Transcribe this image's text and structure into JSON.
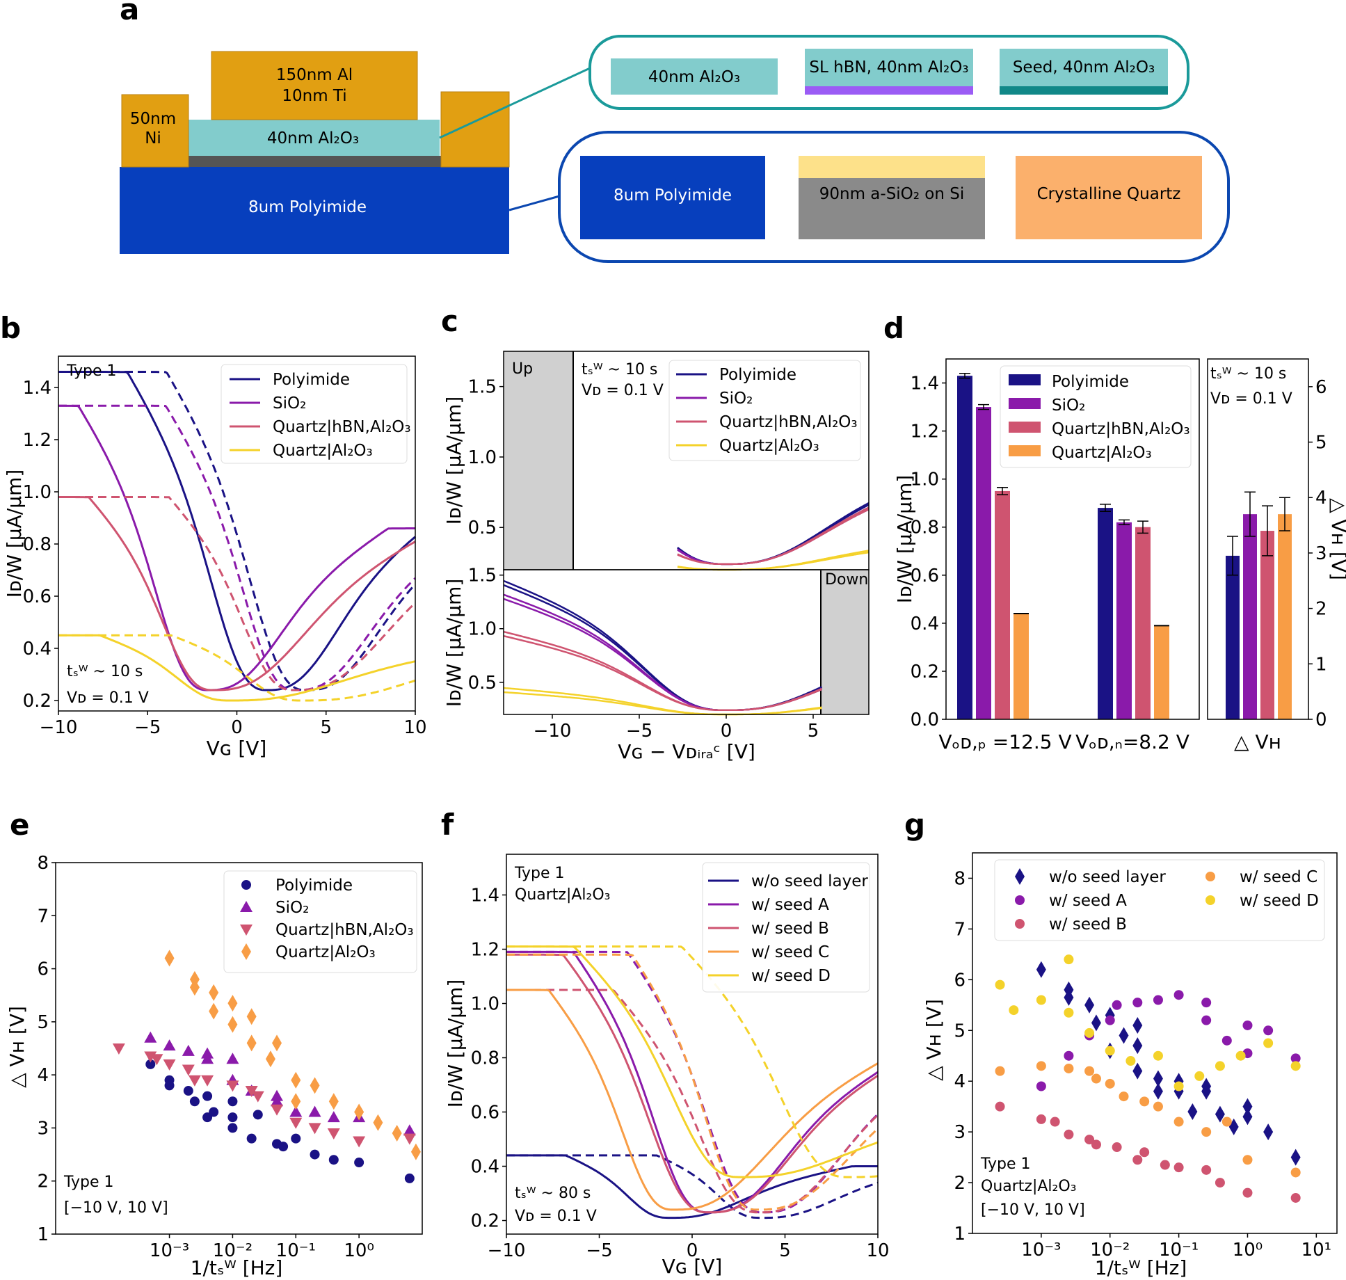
{
  "colors": {
    "polyimide": "#1a1285",
    "sio2": "#8a1aaa",
    "quartz_hbn": "#cf5470",
    "quartz_al2o3": "#f4d22a",
    "orange": "#f89d45",
    "gold": "#e19f12",
    "teal": "#82cccc",
    "blue": "#073fbd",
    "grey": "#8a8a8a"
  },
  "panel_a": {
    "label": "a",
    "al_top": "150nm Al",
    "ti": "10nm Ti",
    "ni_l1": "50nm",
    "ni_l2": "Ni",
    "oxide": "40nm Al₂O₃",
    "substrate": "8um Polyimide",
    "var_plain": "40nm Al₂O₃",
    "var_hbn": "SL hBN, 40nm Al₂O₃",
    "var_seed": "Seed, 40nm Al₂O₃",
    "sub_polyimide": "8um Polyimide",
    "sub_sio2": "90nm a-SiO₂ on Si",
    "sub_quartz": "Crystalline Quartz"
  },
  "panel_b": {
    "label": "b",
    "chart_data": {
      "type": "line",
      "xlabel": "Vɢ [V]",
      "ylabel": "Iᴅ/W [μA/μm]",
      "xlim": [
        -10,
        10
      ],
      "ylim": [
        0.16,
        1.52
      ],
      "xticks": [
        "−10",
        "−5",
        "0",
        "5",
        "10"
      ],
      "yticks": [
        "0.2",
        "0.4",
        "0.6",
        "0.8",
        "1.0",
        "1.2",
        "1.4"
      ],
      "series": [
        {
          "name": "Polyimide",
          "key": "polyimide",
          "min_x": 1.7,
          "min_y": 0.24,
          "left": 1.46,
          "right": 0.91,
          "wl": 2.8,
          "wr": 3.5,
          "dash_min_x": 3.9,
          "dash_left": 1.46,
          "dash_right": 0.86
        },
        {
          "name": "SiO₂",
          "key": "sio2",
          "min_x": -1.6,
          "min_y": 0.24,
          "left": 1.33,
          "right": 0.86,
          "wl": 2.6,
          "wr": 3.6,
          "dash_min_x": 3.3,
          "dash_left": 1.33,
          "dash_right": 0.85
        },
        {
          "name": "Quartz|hBN,Al₂O₃",
          "key": "quartz_hbn",
          "min_x": -1.3,
          "min_y": 0.24,
          "left": 0.98,
          "right": 0.86,
          "wl": 2.5,
          "wr": 4.5,
          "dash_min_x": 3.2,
          "dash_left": 0.98,
          "dash_right": 0.85
        },
        {
          "name": "Quartz|Al₂O₃",
          "key": "quartz_al2o3",
          "min_x": -0.4,
          "min_y": 0.2,
          "left": 0.45,
          "right": 0.41,
          "wl": 2.6,
          "wr": 5.5,
          "dash_min_x": 3.6,
          "dash_left": 0.45,
          "dash_right": 0.41
        }
      ]
    },
    "type": "Type 1",
    "tsw": "tₛᵂ ~ 10 s",
    "vd": "Vᴅ = 0.1 V"
  },
  "panel_c": {
    "label": "c",
    "up": "Up",
    "down": "Down",
    "tsw": "tₛᵂ ~ 10 s",
    "vd": "Vᴅ = 0.1 V",
    "xlabel": "Vɢ − Vᴅᵢᵣₐᶜ [V]",
    "ylabel": "Iᴅ/W [μA/μm]",
    "xticks": [
      "−10",
      "−5",
      "0",
      "5"
    ],
    "yticks_top": [
      "0.5",
      "1.0",
      "1.5"
    ],
    "yticks_bot": [
      "0.5",
      "1.0",
      "1.5"
    ],
    "legend": [
      "Polyimide",
      "SiO₂",
      "Quartz|hBN,Al₂O₃",
      "Quartz|Al₂O₃"
    ]
  },
  "panel_d": {
    "label": "d",
    "chart_data": {
      "type": "bar",
      "categories": [
        "Vₒᴅ,ₚ =12.5 V",
        "Vₒᴅ,ₙ=8.2 V"
      ],
      "ylim": [
        0,
        1.5
      ],
      "ylabel": "Iᴅ/W [μA/μm]",
      "yticks": [
        "0.0",
        "0.2",
        "0.4",
        "0.6",
        "0.8",
        "1.0",
        "1.2",
        "1.4"
      ],
      "series": [
        {
          "name": "Polyimide",
          "key": "polyimide",
          "values": [
            1.43,
            0.88
          ],
          "err": [
            0.01,
            0.015
          ]
        },
        {
          "name": "SiO₂",
          "key": "sio2",
          "values": [
            1.3,
            0.82
          ],
          "err": [
            0.01,
            0.01
          ]
        },
        {
          "name": "Quartz|hBN,Al₂O₃",
          "key": "quartz_hbn",
          "values": [
            0.95,
            0.8
          ],
          "err": [
            0.015,
            0.025
          ]
        },
        {
          "name": "Quartz|Al₂O₃",
          "key": "orange",
          "values": [
            0.44,
            0.39
          ],
          "err": [
            0,
            0
          ]
        }
      ],
      "dvh": {
        "category": "△ Vʜ",
        "ylim": [
          0,
          6.5
        ],
        "yticks": [
          "0",
          "1",
          "2",
          "3",
          "4",
          "5",
          "6"
        ],
        "ylabel": "△ Vʜ [V]",
        "values": [
          2.95,
          3.7,
          3.4,
          3.7
        ],
        "err": [
          0.35,
          0.4,
          0.45,
          0.3
        ]
      }
    },
    "tsw": "tₛᵂ ~ 10 s",
    "vd": "Vᴅ = 0.1 V"
  },
  "panel_e": {
    "label": "e",
    "chart_data": {
      "type": "scatter",
      "xlabel": "1/tₛᵂ [Hz]",
      "ylabel": "△ Vʜ [V]",
      "xlim_log": [
        -4.8,
        1.0
      ],
      "ylim": [
        1,
        8
      ],
      "yticks": [
        "1",
        "2",
        "3",
        "4",
        "5",
        "6",
        "7",
        "8"
      ],
      "xticks": [
        "10⁻³",
        "10⁻²",
        "10⁻¹",
        "10⁰"
      ],
      "series": [
        {
          "name": "Polyimide",
          "key": "polyimide",
          "marker": "circle",
          "points": [
            [
              -3.3,
              4.2
            ],
            [
              -3.0,
              3.9
            ],
            [
              -3.0,
              3.8
            ],
            [
              -2.7,
              3.7
            ],
            [
              -2.6,
              3.5
            ],
            [
              -2.4,
              3.6
            ],
            [
              -2.4,
              3.2
            ],
            [
              -2.3,
              3.3
            ],
            [
              -2.0,
              3.5
            ],
            [
              -2.0,
              3.2
            ],
            [
              -2.0,
              3.0
            ],
            [
              -1.7,
              2.8
            ],
            [
              -1.6,
              3.25
            ],
            [
              -1.3,
              2.7
            ],
            [
              -1.2,
              2.65
            ],
            [
              -1.0,
              2.8
            ],
            [
              -0.7,
              2.5
            ],
            [
              -0.4,
              2.4
            ],
            [
              0.0,
              2.35
            ],
            [
              0.8,
              2.05
            ]
          ]
        },
        {
          "name": "SiO₂",
          "key": "sio2",
          "marker": "tri-up",
          "points": [
            [
              -3.3,
              4.7
            ],
            [
              -3.0,
              4.55
            ],
            [
              -2.7,
              4.45
            ],
            [
              -2.4,
              4.4
            ],
            [
              -2.4,
              4.3
            ],
            [
              -2.0,
              4.3
            ],
            [
              -2.0,
              3.9
            ],
            [
              -1.7,
              3.7
            ],
            [
              -1.3,
              3.6
            ],
            [
              -1.3,
              3.5
            ],
            [
              -1.0,
              3.3
            ],
            [
              -0.7,
              3.3
            ],
            [
              -0.4,
              3.2
            ],
            [
              0.0,
              3.2
            ],
            [
              0.8,
              2.95
            ]
          ]
        },
        {
          "name": "Quartz|hBN,Al₂O₃",
          "key": "quartz_hbn",
          "marker": "tri-down",
          "points": [
            [
              -3.8,
              4.5
            ],
            [
              -3.3,
              4.35
            ],
            [
              -3.2,
              4.3
            ],
            [
              -3.0,
              4.2
            ],
            [
              -2.7,
              4.1
            ],
            [
              -2.6,
              3.9
            ],
            [
              -2.4,
              3.9
            ],
            [
              -2.0,
              3.8
            ],
            [
              -1.7,
              3.7
            ],
            [
              -1.6,
              3.6
            ],
            [
              -1.3,
              3.35
            ],
            [
              -1.0,
              3.1
            ],
            [
              -0.7,
              3.0
            ],
            [
              -0.4,
              2.9
            ],
            [
              0.0,
              2.75
            ],
            [
              0.8,
              2.8
            ]
          ]
        },
        {
          "name": "Quartz|Al₂O₃",
          "key": "orange",
          "marker": "diamond",
          "points": [
            [
              -3.0,
              6.2
            ],
            [
              -2.6,
              5.8
            ],
            [
              -2.6,
              5.65
            ],
            [
              -2.3,
              5.55
            ],
            [
              -2.3,
              5.2
            ],
            [
              -2.0,
              5.35
            ],
            [
              -2.0,
              4.95
            ],
            [
              -1.7,
              5.1
            ],
            [
              -1.7,
              4.6
            ],
            [
              -1.4,
              4.3
            ],
            [
              -1.3,
              4.6
            ],
            [
              -1.0,
              3.9
            ],
            [
              -1.0,
              3.5
            ],
            [
              -0.7,
              3.8
            ],
            [
              -0.4,
              3.5
            ],
            [
              0.0,
              3.3
            ],
            [
              0.3,
              3.1
            ],
            [
              0.6,
              2.9
            ],
            [
              0.9,
              2.55
            ]
          ]
        }
      ]
    },
    "type": "Type 1",
    "range": "[−10 V, 10 V]"
  },
  "panel_f": {
    "label": "f",
    "chart_data": {
      "type": "line",
      "xlabel": "Vɢ [V]",
      "ylabel": "Iᴅ/W [μA/μm]",
      "xlim": [
        -10,
        10
      ],
      "ylim": [
        0.15,
        1.55
      ],
      "xticks": [
        "−10",
        "−5",
        "0",
        "5",
        "10"
      ],
      "yticks": [
        "0.2",
        "0.4",
        "0.6",
        "0.8",
        "1.0",
        "1.2",
        "1.4"
      ],
      "series": [
        {
          "name": "w/o seed layer",
          "key": "polyimide",
          "min_x": -1.2,
          "min_y": 0.21,
          "left": 0.44,
          "right": 0.4,
          "wl": 2.0,
          "wr": 3.5,
          "dash_min_x": 3.7,
          "dash_left": 0.44,
          "dash_right": 0.4
        },
        {
          "name": "w/ seed A",
          "key": "sio2",
          "min_x": 0.9,
          "min_y": 0.23,
          "left": 1.19,
          "right": 0.79,
          "wl": 2.6,
          "wr": 3.6,
          "dash_min_x": 3.8,
          "dash_left": 1.19,
          "dash_right": 0.79
        },
        {
          "name": "w/ seed B",
          "key": "quartz_hbn",
          "min_x": 0.9,
          "min_y": 0.23,
          "left": 1.18,
          "right": 0.8,
          "wl": 2.8,
          "wr": 3.8,
          "dash_min_x": 3.6,
          "dash_left": 1.05,
          "dash_right": 0.8
        },
        {
          "name": "w/ seed C",
          "key": "orange",
          "min_x": -1.0,
          "min_y": 0.24,
          "left": 1.05,
          "right": 0.84,
          "wl": 2.4,
          "wr": 4.5,
          "dash_min_x": 3.5,
          "dash_left": 1.18,
          "dash_right": 0.82
        },
        {
          "name": "w/ seed D",
          "key": "quartz_al2o3",
          "min_x": 2.6,
          "min_y": 0.36,
          "left": 1.21,
          "right": 0.6,
          "wl": 3.2,
          "wr": 5.0,
          "dash_min_x": 8.4,
          "dash_left": 1.21,
          "dash_right": 0.55
        }
      ]
    },
    "type": "Type 1",
    "material": "Quartz|Al₂O₃",
    "tsw": "tₛᵂ ~ 80 s",
    "vd": "Vᴅ = 0.1 V"
  },
  "panel_g": {
    "label": "g",
    "chart_data": {
      "type": "scatter",
      "xlabel": "1/tₛᵂ [Hz]",
      "ylabel": "△ Vʜ [V]",
      "xlim_log": [
        -4.0,
        1.3
      ],
      "ylim": [
        1,
        8.5
      ],
      "yticks": [
        "1",
        "2",
        "3",
        "4",
        "5",
        "6",
        "7",
        "8"
      ],
      "xticks": [
        "10⁻³",
        "10⁻²",
        "10⁻¹",
        "10⁰",
        "10¹"
      ],
      "series": [
        {
          "name": "w/o seed layer",
          "key": "polyimide",
          "marker": "diamond",
          "points": [
            [
              -3.0,
              6.2
            ],
            [
              -2.6,
              5.8
            ],
            [
              -2.6,
              5.65
            ],
            [
              -2.3,
              5.5
            ],
            [
              -2.2,
              5.15
            ],
            [
              -2.0,
              5.3
            ],
            [
              -2.0,
              4.6
            ],
            [
              -1.8,
              4.9
            ],
            [
              -1.6,
              5.1
            ],
            [
              -1.6,
              4.7
            ],
            [
              -1.6,
              4.2
            ],
            [
              -1.3,
              4.05
            ],
            [
              -1.3,
              3.8
            ],
            [
              -1.0,
              3.8
            ],
            [
              -1.0,
              4.0
            ],
            [
              -0.8,
              3.4
            ],
            [
              -0.6,
              3.9
            ],
            [
              -0.6,
              3.8
            ],
            [
              -0.4,
              3.35
            ],
            [
              -0.2,
              3.1
            ],
            [
              0.0,
              3.5
            ],
            [
              0.0,
              3.3
            ],
            [
              0.3,
              3.0
            ],
            [
              0.7,
              2.5
            ]
          ]
        },
        {
          "name": "w/ seed A",
          "key": "sio2",
          "marker": "circle",
          "points": [
            [
              -3.0,
              3.9
            ],
            [
              -2.6,
              4.5
            ],
            [
              -2.3,
              4.9
            ],
            [
              -2.0,
              5.2
            ],
            [
              -1.9,
              5.5
            ],
            [
              -1.6,
              5.55
            ],
            [
              -1.3,
              5.6
            ],
            [
              -1.0,
              5.7
            ],
            [
              -0.6,
              5.55
            ],
            [
              -0.6,
              5.2
            ],
            [
              -0.3,
              4.8
            ],
            [
              0.0,
              4.55
            ],
            [
              0.0,
              5.1
            ],
            [
              0.3,
              5.0
            ],
            [
              0.7,
              4.45
            ]
          ]
        },
        {
          "name": "w/ seed B",
          "key": "quartz_hbn",
          "marker": "circle",
          "points": [
            [
              -3.6,
              3.5
            ],
            [
              -3.0,
              3.25
            ],
            [
              -2.8,
              3.2
            ],
            [
              -2.6,
              2.95
            ],
            [
              -2.3,
              2.85
            ],
            [
              -2.2,
              2.75
            ],
            [
              -1.9,
              2.7
            ],
            [
              -1.6,
              2.45
            ],
            [
              -1.5,
              2.6
            ],
            [
              -1.2,
              2.35
            ],
            [
              -1.0,
              2.3
            ],
            [
              -0.6,
              2.25
            ],
            [
              -0.4,
              2.0
            ],
            [
              0.0,
              1.8
            ],
            [
              0.7,
              1.7
            ]
          ]
        },
        {
          "name": "w/ seed C",
          "key": "orange",
          "marker": "circle",
          "points": [
            [
              -3.6,
              4.2
            ],
            [
              -3.0,
              4.3
            ],
            [
              -2.6,
              4.25
            ],
            [
              -2.3,
              4.2
            ],
            [
              -2.2,
              4.05
            ],
            [
              -2.0,
              3.95
            ],
            [
              -1.8,
              3.7
            ],
            [
              -1.5,
              3.6
            ],
            [
              -1.3,
              3.5
            ],
            [
              -1.0,
              3.2
            ],
            [
              -0.6,
              3.0
            ],
            [
              -0.3,
              3.2
            ],
            [
              0.0,
              2.45
            ],
            [
              0.7,
              2.2
            ]
          ]
        },
        {
          "name": "w/ seed D",
          "key": "quartz_al2o3",
          "marker": "circle",
          "points": [
            [
              -3.6,
              5.9
            ],
            [
              -3.4,
              5.4
            ],
            [
              -3.0,
              5.6
            ],
            [
              -2.6,
              6.4
            ],
            [
              -2.6,
              5.35
            ],
            [
              -2.3,
              4.95
            ],
            [
              -2.0,
              4.6
            ],
            [
              -1.7,
              4.4
            ],
            [
              -1.3,
              4.5
            ],
            [
              -1.0,
              3.9
            ],
            [
              -0.7,
              4.1
            ],
            [
              -0.4,
              4.3
            ],
            [
              -0.1,
              4.5
            ],
            [
              0.3,
              4.75
            ],
            [
              0.7,
              4.3
            ]
          ]
        }
      ]
    },
    "type": "Type 1",
    "material": "Quartz|Al₂O₃",
    "range": "[−10 V, 10 V]"
  }
}
